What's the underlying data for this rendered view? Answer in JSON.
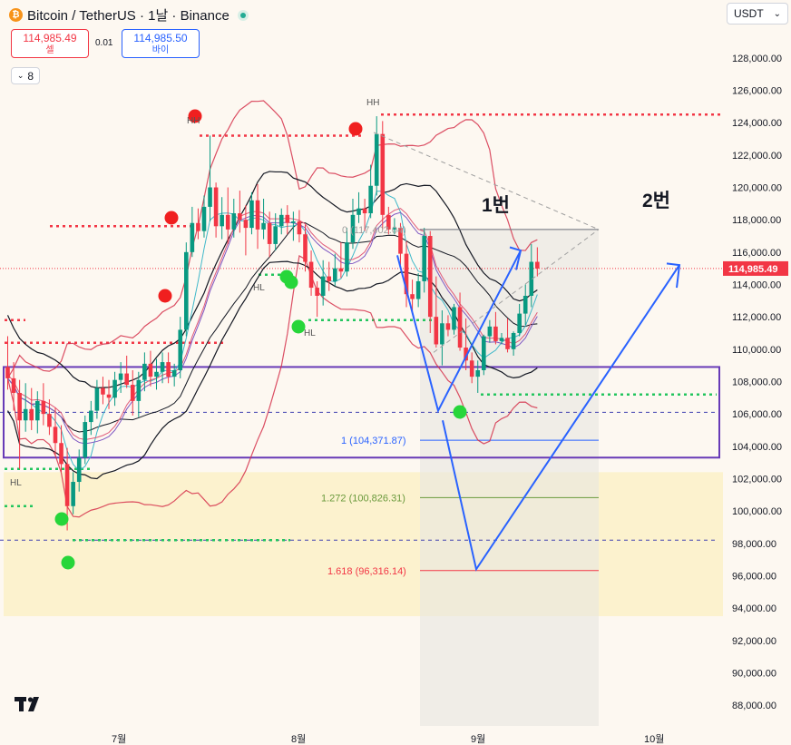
{
  "header": {
    "title": "Bitcoin / TetherUS · 1날 · Binance",
    "coin_icon": "bitcoin-icon",
    "sell_price": "114,985.49",
    "sell_label": "셀",
    "spread": "0.01",
    "buy_price": "114,985.50",
    "buy_label": "바이",
    "indicator_count": "8",
    "currency": "USDT"
  },
  "colors": {
    "background": "#fdf8f1",
    "candle_up": "#089981",
    "candle_down": "#f23645",
    "bb_band": "#d5304a",
    "envelope": "#131722",
    "trend_arrow": "#2962ff",
    "range_box": "#673ab7",
    "last_price": "#f23645"
  },
  "chart_data": {
    "type": "candlestick",
    "y_axis": {
      "ticks": [
        "128,000.00",
        "126,000.00",
        "124,000.00",
        "122,000.00",
        "120,000.00",
        "118,000.00",
        "116,000.00",
        "114,000.00",
        "112,000.00",
        "110,000.00",
        "108,000.00",
        "106,000.00",
        "104,000.00",
        "102,000.00",
        "100,000.00",
        "98,000.00",
        "96,000.00",
        "94,000.00",
        "92,000.00",
        "90,000.00",
        "88,000.00"
      ],
      "range": [
        86700,
        130000
      ]
    },
    "x_axis": {
      "ticks": [
        "7월",
        "8월",
        "9월",
        "10월"
      ]
    },
    "last_price": "114,985.49",
    "annotations": {
      "fib_0": "0 (117,402.04)",
      "fib_1": "1 (104,371.87)",
      "fib_1272": "1.272 (100,826.31)",
      "fib_1618": "1.618 (96,316.14)",
      "label_1": "1번",
      "label_2": "2번",
      "swing_labels": [
        "HH",
        "HH",
        "HL",
        "HL",
        "HL"
      ]
    },
    "candles": [
      {
        "o": 108900,
        "h": 110800,
        "l": 107500,
        "c": 108200
      },
      {
        "o": 108200,
        "h": 109200,
        "l": 106200,
        "c": 107300
      },
      {
        "o": 107300,
        "h": 108100,
        "l": 102600,
        "c": 105600
      },
      {
        "o": 105600,
        "h": 107900,
        "l": 104900,
        "c": 106300
      },
      {
        "o": 106300,
        "h": 107600,
        "l": 105000,
        "c": 105600
      },
      {
        "o": 105600,
        "h": 107400,
        "l": 104800,
        "c": 106800
      },
      {
        "o": 106800,
        "h": 107900,
        "l": 105300,
        "c": 106000
      },
      {
        "o": 106000,
        "h": 106900,
        "l": 104700,
        "c": 105200
      },
      {
        "o": 105200,
        "h": 106400,
        "l": 103400,
        "c": 104200
      },
      {
        "o": 104200,
        "h": 105300,
        "l": 102400,
        "c": 102900
      },
      {
        "o": 102900,
        "h": 103900,
        "l": 98800,
        "c": 100300
      },
      {
        "o": 100300,
        "h": 102400,
        "l": 99800,
        "c": 101800
      },
      {
        "o": 101800,
        "h": 103800,
        "l": 101200,
        "c": 103300
      },
      {
        "o": 103300,
        "h": 105900,
        "l": 102900,
        "c": 105500
      },
      {
        "o": 105500,
        "h": 106800,
        "l": 104700,
        "c": 106200
      },
      {
        "o": 106200,
        "h": 108100,
        "l": 105700,
        "c": 107600
      },
      {
        "o": 107600,
        "h": 108300,
        "l": 106600,
        "c": 107200
      },
      {
        "o": 107200,
        "h": 108100,
        "l": 106300,
        "c": 107000
      },
      {
        "o": 107000,
        "h": 108600,
        "l": 106500,
        "c": 108100
      },
      {
        "o": 108100,
        "h": 109200,
        "l": 107300,
        "c": 108500
      },
      {
        "o": 108500,
        "h": 109600,
        "l": 107600,
        "c": 107800
      },
      {
        "o": 107800,
        "h": 108700,
        "l": 105900,
        "c": 106800
      },
      {
        "o": 106800,
        "h": 108600,
        "l": 105800,
        "c": 108100
      },
      {
        "o": 108100,
        "h": 109800,
        "l": 107400,
        "c": 109100
      },
      {
        "o": 109100,
        "h": 109900,
        "l": 107700,
        "c": 108300
      },
      {
        "o": 108300,
        "h": 109400,
        "l": 107500,
        "c": 108600
      },
      {
        "o": 108600,
        "h": 109800,
        "l": 107900,
        "c": 109200
      },
      {
        "o": 109200,
        "h": 109800,
        "l": 107900,
        "c": 108300
      },
      {
        "o": 108300,
        "h": 109100,
        "l": 107700,
        "c": 108700
      },
      {
        "o": 108700,
        "h": 112000,
        "l": 108200,
        "c": 111200
      },
      {
        "o": 111200,
        "h": 116600,
        "l": 110800,
        "c": 116000
      },
      {
        "o": 116000,
        "h": 118800,
        "l": 115700,
        "c": 117800
      },
      {
        "o": 117800,
        "h": 118700,
        "l": 116800,
        "c": 117300
      },
      {
        "o": 117300,
        "h": 119500,
        "l": 116900,
        "c": 118800
      },
      {
        "o": 118800,
        "h": 123200,
        "l": 117900,
        "c": 120000
      },
      {
        "o": 120000,
        "h": 120300,
        "l": 116900,
        "c": 117600
      },
      {
        "o": 117600,
        "h": 119400,
        "l": 116800,
        "c": 118300
      },
      {
        "o": 118300,
        "h": 120000,
        "l": 116500,
        "c": 117400
      },
      {
        "o": 117400,
        "h": 119300,
        "l": 116900,
        "c": 118400
      },
      {
        "o": 118400,
        "h": 119800,
        "l": 117200,
        "c": 118000
      },
      {
        "o": 118000,
        "h": 118900,
        "l": 115800,
        "c": 117500
      },
      {
        "o": 117500,
        "h": 119700,
        "l": 117100,
        "c": 119200
      },
      {
        "o": 119200,
        "h": 120200,
        "l": 116200,
        "c": 117400
      },
      {
        "o": 117400,
        "h": 119300,
        "l": 116800,
        "c": 117800
      },
      {
        "o": 117800,
        "h": 118500,
        "l": 115700,
        "c": 116500
      },
      {
        "o": 116500,
        "h": 118400,
        "l": 116100,
        "c": 117600
      },
      {
        "o": 117600,
        "h": 118700,
        "l": 117100,
        "c": 118300
      },
      {
        "o": 118300,
        "h": 118900,
        "l": 117100,
        "c": 117800
      },
      {
        "o": 117800,
        "h": 118500,
        "l": 116700,
        "c": 117900
      },
      {
        "o": 117900,
        "h": 118600,
        "l": 116600,
        "c": 117100
      },
      {
        "o": 117100,
        "h": 117700,
        "l": 114800,
        "c": 115400
      },
      {
        "o": 115400,
        "h": 116100,
        "l": 113300,
        "c": 113800
      },
      {
        "o": 113800,
        "h": 114200,
        "l": 112000,
        "c": 113300
      },
      {
        "o": 113300,
        "h": 115500,
        "l": 112700,
        "c": 114500
      },
      {
        "o": 114500,
        "h": 115400,
        "l": 113600,
        "c": 114200
      },
      {
        "o": 114200,
        "h": 115900,
        "l": 113900,
        "c": 115000
      },
      {
        "o": 115000,
        "h": 116600,
        "l": 114400,
        "c": 114800
      },
      {
        "o": 114800,
        "h": 117500,
        "l": 114500,
        "c": 116600
      },
      {
        "o": 116600,
        "h": 119300,
        "l": 116200,
        "c": 118300
      },
      {
        "o": 118300,
        "h": 119700,
        "l": 117800,
        "c": 118700
      },
      {
        "o": 118700,
        "h": 119300,
        "l": 117300,
        "c": 118400
      },
      {
        "o": 118400,
        "h": 121400,
        "l": 118100,
        "c": 120100
      },
      {
        "o": 120100,
        "h": 124400,
        "l": 119500,
        "c": 123300
      },
      {
        "o": 123300,
        "h": 124100,
        "l": 117400,
        "c": 118300
      },
      {
        "o": 118300,
        "h": 118800,
        "l": 117100,
        "c": 117400
      },
      {
        "o": 117400,
        "h": 118100,
        "l": 117100,
        "c": 117500
      },
      {
        "o": 117500,
        "h": 117800,
        "l": 115200,
        "c": 115900
      },
      {
        "o": 115900,
        "h": 116700,
        "l": 112600,
        "c": 113400
      },
      {
        "o": 113400,
        "h": 114300,
        "l": 112300,
        "c": 113100
      },
      {
        "o": 113100,
        "h": 114700,
        "l": 112600,
        "c": 114200
      },
      {
        "o": 114200,
        "h": 117500,
        "l": 113500,
        "c": 117000
      },
      {
        "o": 117000,
        "h": 117300,
        "l": 111000,
        "c": 112000
      },
      {
        "o": 112000,
        "h": 114500,
        "l": 110100,
        "c": 110300
      },
      {
        "o": 110300,
        "h": 112400,
        "l": 109000,
        "c": 111600
      },
      {
        "o": 111600,
        "h": 112100,
        "l": 110800,
        "c": 111200
      },
      {
        "o": 111200,
        "h": 112800,
        "l": 110900,
        "c": 112600
      },
      {
        "o": 112600,
        "h": 113500,
        "l": 109900,
        "c": 110100
      },
      {
        "o": 110100,
        "h": 111900,
        "l": 108700,
        "c": 109300
      },
      {
        "o": 109300,
        "h": 109800,
        "l": 107900,
        "c": 108300
      },
      {
        "o": 108300,
        "h": 109300,
        "l": 107300,
        "c": 108700
      },
      {
        "o": 108700,
        "h": 110900,
        "l": 108400,
        "c": 110800
      },
      {
        "o": 110800,
        "h": 111800,
        "l": 110400,
        "c": 111400
      },
      {
        "o": 111400,
        "h": 112300,
        "l": 110300,
        "c": 110500
      },
      {
        "o": 110500,
        "h": 111000,
        "l": 110300,
        "c": 110700
      },
      {
        "o": 110700,
        "h": 111900,
        "l": 109800,
        "c": 110000
      },
      {
        "o": 110000,
        "h": 111100,
        "l": 109600,
        "c": 111000
      },
      {
        "o": 111000,
        "h": 112800,
        "l": 110800,
        "c": 112200
      },
      {
        "o": 112200,
        "h": 114000,
        "l": 111500,
        "c": 113300
      },
      {
        "o": 113300,
        "h": 116500,
        "l": 112600,
        "c": 115400
      },
      {
        "o": 115400,
        "h": 116300,
        "l": 114500,
        "c": 114985
      }
    ]
  }
}
